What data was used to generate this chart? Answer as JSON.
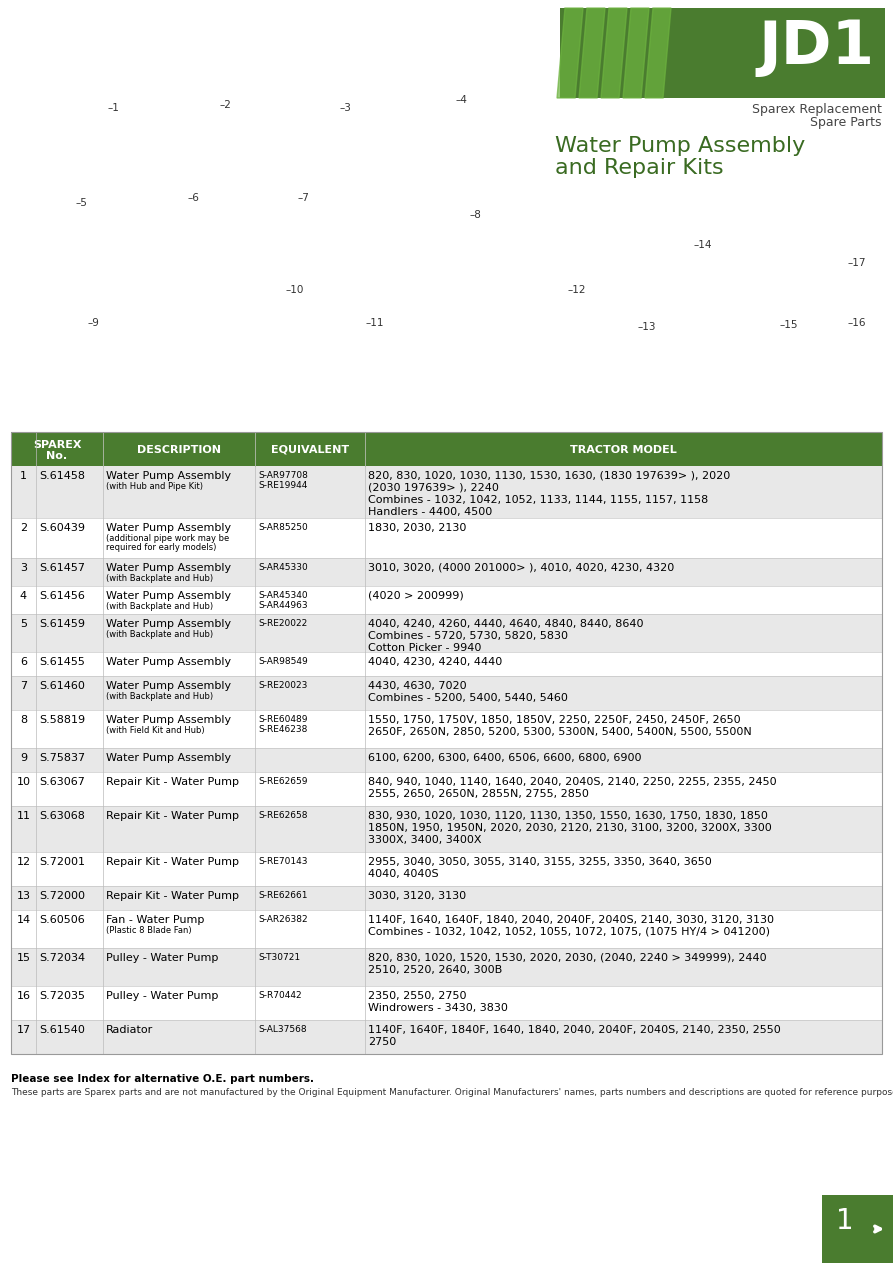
{
  "page_bg": "#ffffff",
  "header_bg": "#4a7c2f",
  "row_alt_bg": "#e8e8e8",
  "row_white_bg": "#ffffff",
  "green_dark": "#3a6b22",
  "stripe_color": "#6db33f",
  "rows": [
    {
      "num": "1",
      "sparex": "S.61458",
      "desc": "Water Pump Assembly",
      "desc_sub": "(with Hub and Pipe Kit)",
      "equiv": "S-AR97708\nS-RE19944",
      "model": "820, 830, 1020, 1030, 1130, 1530, 1630, (1830 197639> ), 2020\n(2030 197639> ), 2240\nCombines - 1032, 1042, 1052, 1133, 1144, 1155, 1157, 1158\nHandlers - 4400, 4500",
      "alt": true
    },
    {
      "num": "2",
      "sparex": "S.60439",
      "desc": "Water Pump Assembly",
      "desc_sub": "(additional pipe work may be\nrequired for early models)",
      "equiv": "S-AR85250",
      "model": "1830, 2030, 2130",
      "alt": false
    },
    {
      "num": "3",
      "sparex": "S.61457",
      "desc": "Water Pump Assembly",
      "desc_sub": "(with Backplate and Hub)",
      "equiv": "S-AR45330",
      "model": "3010, 3020, (4000 201000> ), 4010, 4020, 4230, 4320",
      "alt": true
    },
    {
      "num": "4",
      "sparex": "S.61456",
      "desc": "Water Pump Assembly",
      "desc_sub": "(with Backplate and Hub)",
      "equiv": "S-AR45340\nS-AR44963",
      "model": "(4020 > 200999)",
      "alt": false
    },
    {
      "num": "5",
      "sparex": "S.61459",
      "desc": "Water Pump Assembly",
      "desc_sub": "(with Backplate and Hub)",
      "equiv": "S-RE20022",
      "model": "4040, 4240, 4260, 4440, 4640, 4840, 8440, 8640\nCombines - 5720, 5730, 5820, 5830\nCotton Picker - 9940",
      "alt": true
    },
    {
      "num": "6",
      "sparex": "S.61455",
      "desc": "Water Pump Assembly",
      "desc_sub": "",
      "equiv": "S-AR98549",
      "model": "4040, 4230, 4240, 4440",
      "alt": false
    },
    {
      "num": "7",
      "sparex": "S.61460",
      "desc": "Water Pump Assembly",
      "desc_sub": "(with Backplate and Hub)",
      "equiv": "S-RE20023",
      "model": "4430, 4630, 7020\nCombines - 5200, 5400, 5440, 5460",
      "alt": true
    },
    {
      "num": "8",
      "sparex": "S.58819",
      "desc": "Water Pump Assembly",
      "desc_sub": "(with Field Kit and Hub)",
      "equiv": "S-RE60489\nS-RE46238",
      "model": "1550, 1750, 1750V, 1850, 1850V, 2250, 2250F, 2450, 2450F, 2650\n2650F, 2650N, 2850, 5200, 5300, 5300N, 5400, 5400N, 5500, 5500N",
      "alt": false
    },
    {
      "num": "9",
      "sparex": "S.75837",
      "desc": "Water Pump Assembly",
      "desc_sub": "",
      "equiv": "",
      "model": "6100, 6200, 6300, 6400, 6506, 6600, 6800, 6900",
      "alt": true
    },
    {
      "num": "10",
      "sparex": "S.63067",
      "desc": "Repair Kit - Water Pump",
      "desc_sub": "",
      "equiv": "S-RE62659",
      "model": "840, 940, 1040, 1140, 1640, 2040, 2040S, 2140, 2250, 2255, 2355, 2450\n2555, 2650, 2650N, 2855N, 2755, 2850",
      "alt": false
    },
    {
      "num": "11",
      "sparex": "S.63068",
      "desc": "Repair Kit - Water Pump",
      "desc_sub": "",
      "equiv": "S-RE62658",
      "model": "830, 930, 1020, 1030, 1120, 1130, 1350, 1550, 1630, 1750, 1830, 1850\n1850N, 1950, 1950N, 2020, 2030, 2120, 2130, 3100, 3200, 3200X, 3300\n3300X, 3400, 3400X",
      "alt": true
    },
    {
      "num": "12",
      "sparex": "S.72001",
      "desc": "Repair Kit - Water Pump",
      "desc_sub": "",
      "equiv": "S-RE70143",
      "model": "2955, 3040, 3050, 3055, 3140, 3155, 3255, 3350, 3640, 3650\n4040, 4040S",
      "alt": false
    },
    {
      "num": "13",
      "sparex": "S.72000",
      "desc": "Repair Kit - Water Pump",
      "desc_sub": "",
      "equiv": "S-RE62661",
      "model": "3030, 3120, 3130",
      "alt": true
    },
    {
      "num": "14",
      "sparex": "S.60506",
      "desc": "Fan - Water Pump",
      "desc_sub": "(Plastic 8 Blade Fan)",
      "equiv": "S-AR26382",
      "model": "1140F, 1640, 1640F, 1840, 2040, 2040F, 2040S, 2140, 3030, 3120, 3130\nCombines - 1032, 1042, 1052, 1055, 1072, 1075, (1075 HY/4 > 041200)",
      "alt": false
    },
    {
      "num": "15",
      "sparex": "S.72034",
      "desc": "Pulley - Water Pump",
      "desc_sub": "",
      "equiv": "S-T30721",
      "model": "820, 830, 1020, 1520, 1530, 2020, 2030, (2040, 2240 > 349999), 2440\n2510, 2520, 2640, 300B",
      "alt": true
    },
    {
      "num": "16",
      "sparex": "S.72035",
      "desc": "Pulley - Water Pump",
      "desc_sub": "",
      "equiv": "S-R70442",
      "model": "2350, 2550, 2750\nWindrowers - 3430, 3830",
      "alt": false
    },
    {
      "num": "17",
      "sparex": "S.61540",
      "desc": "Radiator",
      "desc_sub": "",
      "equiv": "S-AL37568",
      "model": "1140F, 1640F, 1840F, 1640, 1840, 2040, 2040F, 2040S, 2140, 2350, 2550\n2750",
      "alt": true
    }
  ],
  "footer_note1": "Please see Index for alternative O.E. part numbers.",
  "footer_note2": "These parts are Sparex parts and are not manufactured by the Original Equipment Manufacturer. Original Manufacturers' names, parts numbers and descriptions are quoted for reference purposes only and are not intended to indicate or suggest that our replacement parts are made by the OEM.",
  "page_num": "1"
}
